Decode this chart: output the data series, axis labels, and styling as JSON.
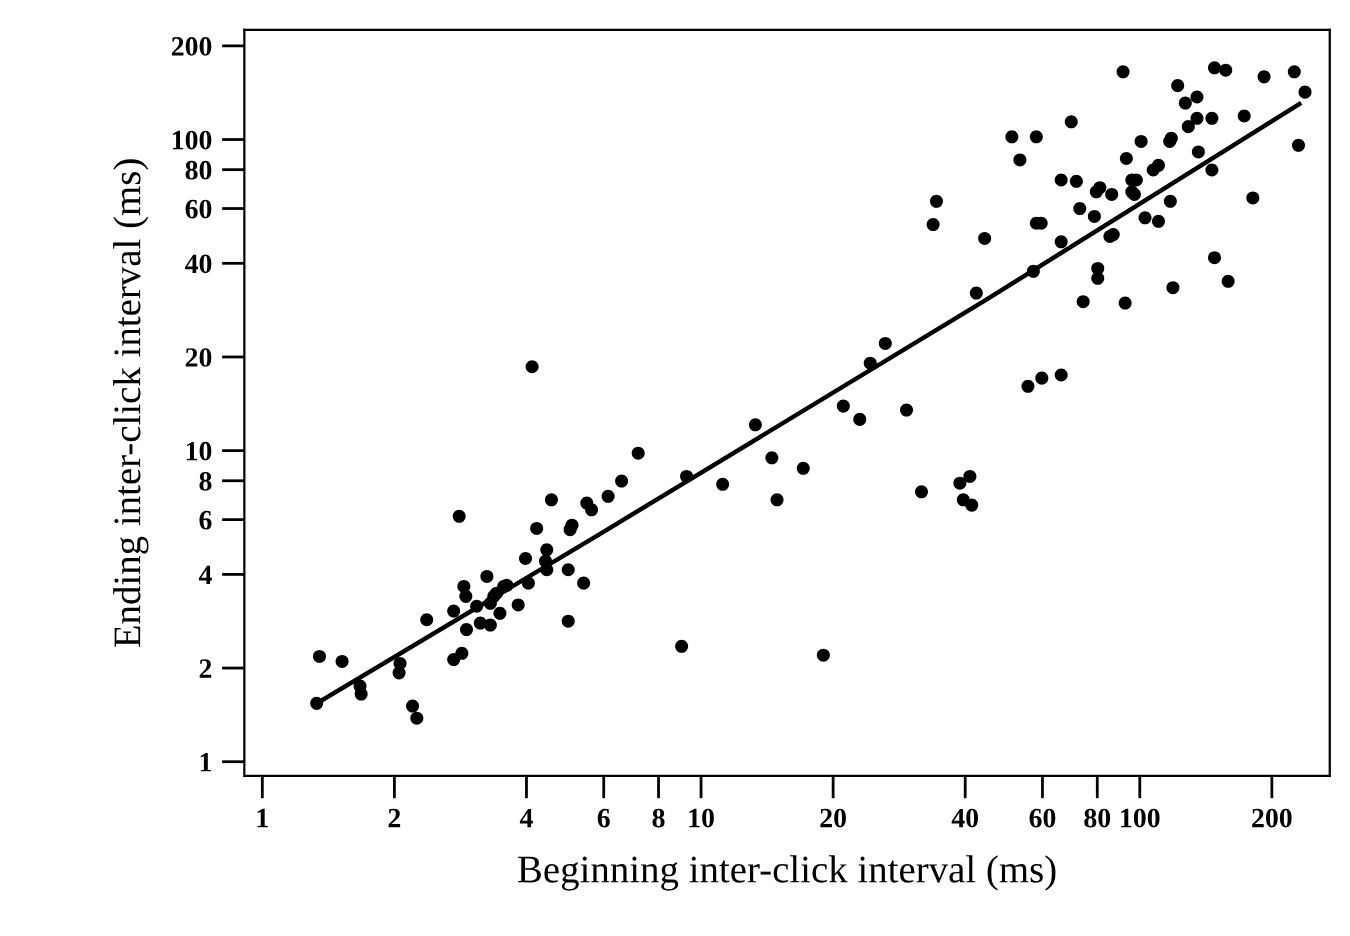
{
  "chart_data": {
    "type": "scatter",
    "xlabel": "Beginning inter-click interval (ms)",
    "ylabel": "Ending inter-click interval (ms)",
    "log": "xy",
    "grid": false,
    "marker": "circle",
    "xlim": [
      0.91,
      271
    ],
    "ylim": [
      0.9,
      225
    ],
    "xticks": [
      1,
      2,
      4,
      6,
      8,
      10,
      20,
      40,
      60,
      80,
      100,
      200
    ],
    "yticks": [
      1,
      2,
      4,
      6,
      8,
      10,
      20,
      40,
      60,
      80,
      100,
      200
    ],
    "series": [
      {
        "color": "#000000",
        "x": [
          1.35,
          1.52,
          1.33,
          1.67,
          1.68,
          2.06,
          2.05,
          2.2,
          2.25,
          2.37,
          2.81,
          2.73,
          2.73,
          2.85,
          2.88,
          2.91,
          2.92,
          3.08,
          3.14,
          3.25,
          3.31,
          3.37,
          3.42,
          3.48,
          3.55,
          3.61,
          3.31,
          3.83,
          4.12,
          3.98,
          4.22,
          4.04,
          4.45,
          4.42,
          4.45,
          4.56,
          4.98,
          4.98,
          5.03,
          5.08,
          5.4,
          5.49,
          5.63,
          6.14,
          6.59,
          7.19,
          9.27,
          9.03,
          11.2,
          13.3,
          14.5,
          14.9,
          17.1,
          19.0,
          21.1,
          23.0,
          24.3,
          26.3,
          29.4,
          31.8,
          38.9,
          41.0,
          39.6,
          41.4,
          55.6,
          59.8,
          66.2,
          42.4,
          57.2,
          66.2,
          74.3,
          80.2,
          80.2,
          92.6,
          119,
          148,
          159,
          33.8,
          34.4,
          44.3,
          58.1,
          59.6,
          51.1,
          58.1,
          53.3,
          69.8,
          91.6,
          66.2,
          71.7,
          73.0,
          78.8,
          79.6,
          81.1,
          86.3,
          85.5,
          87.0,
          93.2,
          95.9,
          98.2,
          95.9,
          97.2,
          100.7,
          102.8,
          110.3,
          107.3,
          110.3,
          117,
          118,
          117.4,
          122,
          127,
          129,
          135,
          135,
          136,
          146,
          146,
          148,
          157,
          173,
          181,
          192,
          225,
          238,
          230
        ],
        "values": [
          2.18,
          2.1,
          1.54,
          1.75,
          1.65,
          2.07,
          1.93,
          1.51,
          1.38,
          2.86,
          6.15,
          3.05,
          2.13,
          2.23,
          3.66,
          3.4,
          2.66,
          3.16,
          2.79,
          3.94,
          3.23,
          3.4,
          3.48,
          3.0,
          3.66,
          3.69,
          2.75,
          3.19,
          18.6,
          4.5,
          5.62,
          3.75,
          4.8,
          4.41,
          4.14,
          6.95,
          4.14,
          2.83,
          5.57,
          5.76,
          3.75,
          6.78,
          6.45,
          7.13,
          7.98,
          9.81,
          8.26,
          2.35,
          7.79,
          12.1,
          9.48,
          6.95,
          8.77,
          2.2,
          13.9,
          12.6,
          19.1,
          22.1,
          13.5,
          7.37,
          7.86,
          8.26,
          6.95,
          6.68,
          16.1,
          17.1,
          17.5,
          32.1,
          37.7,
          46.9,
          30.1,
          38.5,
          35.8,
          29.8,
          33.4,
          41.7,
          35.0,
          53.3,
          63.3,
          48.1,
          53.8,
          53.8,
          102,
          102,
          86,
          114,
          165,
          74.1,
          73.4,
          60.0,
          56.6,
          67.9,
          70.0,
          66.6,
          48.8,
          49.5,
          86.9,
          74.1,
          74.1,
          67.9,
          66.6,
          98.6,
          56.0,
          54.6,
          79.8,
          82.6,
          98.6,
          101,
          63.3,
          149,
          131,
          110,
          137,
          117,
          91.2,
          117,
          79.8,
          170,
          167,
          119,
          64.9,
          159,
          165,
          142,
          95.8
        ]
      },
      {
        "type": "line",
        "color": "#000000",
        "marker": "none",
        "x": [
          1.33,
          5.89,
          44.6,
          231
        ],
        "values": [
          1.54,
          5.4,
          30.5,
          130
        ]
      }
    ]
  }
}
